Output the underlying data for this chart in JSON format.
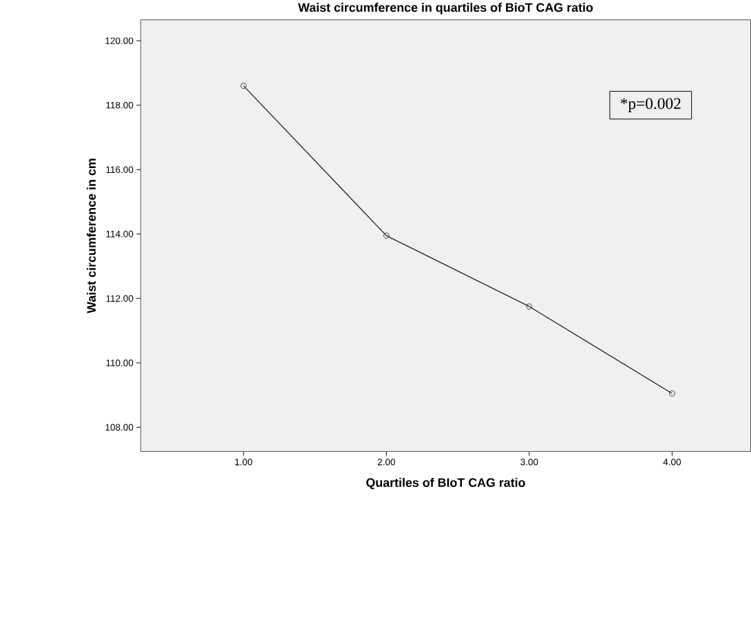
{
  "chart_data": {
    "type": "line",
    "title": "Waist circumference in quartiles of BioT CAG ratio",
    "xlabel": "Quartiles of BIoT CAG ratio",
    "ylabel": "Waist circumference in cm",
    "x": [
      1,
      2,
      3,
      4
    ],
    "series": [
      {
        "color": "#222222",
        "values": [
          118.6,
          113.95,
          111.75,
          109.05
        ]
      }
    ],
    "xlim": [
      0.28,
      4.55
    ],
    "ylim": [
      107.25,
      120.65
    ],
    "xticks": [
      {
        "value": 1,
        "label": "1.00"
      },
      {
        "value": 2,
        "label": "2.00"
      },
      {
        "value": 3,
        "label": "3.00"
      },
      {
        "value": 4,
        "label": "4.00"
      }
    ],
    "yticks": [
      {
        "value": 108,
        "label": "108.00"
      },
      {
        "value": 110,
        "label": "110.00"
      },
      {
        "value": 112,
        "label": "112.00"
      },
      {
        "value": 114,
        "label": "114.00"
      },
      {
        "value": 116,
        "label": "116.00"
      },
      {
        "value": 118,
        "label": "118.00"
      },
      {
        "value": 120,
        "label": "120.00"
      }
    ],
    "annotations": [
      "*p=0.002"
    ],
    "marker": "circle",
    "line_style": "solid"
  }
}
